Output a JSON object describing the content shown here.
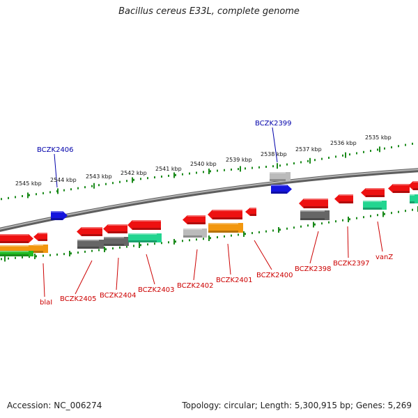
{
  "title": "Bacillus cereus E33L, complete genome",
  "footer": {
    "accession": "Accession: NC_006274",
    "summary": "Topology: circular; Length: 5,300,915 bp; Genes: 5,269"
  },
  "colors": {
    "background": "#ffffff",
    "backbone": "#8c8c8c",
    "tick": "#1a8a1a",
    "gene_red": "#ee1111",
    "gene_blue": "#1515dd",
    "gene_gray": "#bbbbbb",
    "gene_dark": "#666666",
    "gene_teal": "#22d590",
    "gene_orange": "#f2970f",
    "gene_green": "#22bb22",
    "label_red": "#cc0000",
    "label_blue": "#0000aa"
  },
  "scale_labels": [
    "2545 kbp",
    "2544 kbp",
    "2543 kbp",
    "2542 kbp",
    "2541 kbp",
    "2540 kbp",
    "2539 kbp",
    "2538 kbp",
    "2537 kbp",
    "2536 kbp",
    "2535 kbp"
  ],
  "top_labels": [
    "BCZK2406",
    "BCZK2399"
  ],
  "bottom_labels": [
    "blaI",
    "BCZK2405",
    "BCZK2404",
    "BCZK2403",
    "BCZK2402",
    "BCZK2401",
    "BCZK2400",
    "BCZK2398",
    "BCZK2397",
    "vanZ"
  ]
}
